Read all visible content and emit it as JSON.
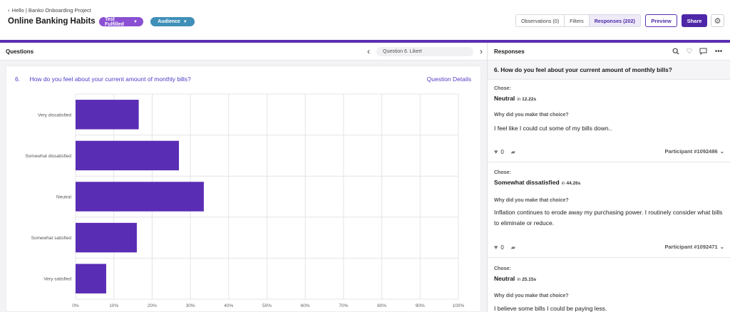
{
  "header": {
    "breadcrumb": "Hello | Banko Onboarding Project",
    "title": "Online Banking Habits",
    "test_status": "Test Fulfilled",
    "audience_label": "Audience",
    "tabs": [
      {
        "label": "Observations (0)"
      },
      {
        "label": "Filters"
      },
      {
        "label": "Responses (202)",
        "active": true
      }
    ],
    "preview_label": "Preview",
    "share_label": "Share",
    "accent_color": "#5b2fb0"
  },
  "questions": {
    "label": "Questions",
    "selector": "Question 6. Likert",
    "question_number": "6.",
    "question_text": "How do you feel about your current amount of monthly bills?",
    "details_link": "Question Details"
  },
  "chart_data": {
    "type": "bar",
    "orientation": "horizontal",
    "categories": [
      "Very dissatisfied",
      "Somewhat dissatisfied",
      "Neutral",
      "Somewhat satisfied",
      "Very satisfied"
    ],
    "values": [
      16.5,
      27,
      33.5,
      16,
      8
    ],
    "xlim": [
      0,
      100
    ],
    "xticks": [
      "0%",
      "10%",
      "20%",
      "30%",
      "40%",
      "50%",
      "60%",
      "70%",
      "80%",
      "90%",
      "100%"
    ],
    "bar_color": "#5a2db5",
    "grid": true
  },
  "responses": {
    "label": "Responses",
    "question_title": "6. How do you feel about your current amount of monthly bills?",
    "chose_label": "Chose:",
    "why_label": "Why did you make that choice?",
    "time_prefix": "in",
    "items": [
      {
        "answer": "Neutral",
        "time": "12.22s",
        "text": "I feel like I could cut some of my bills down..",
        "likes": "0",
        "participant": "Participant #1092486"
      },
      {
        "answer": "Somewhat dissatisfied",
        "time": "44.26s",
        "text": "Inflation continues to erode away my purchasing power. I routinely consider what bills to eliminate or reduce.",
        "likes": "0",
        "participant": "Participant #1092471"
      },
      {
        "answer": "Neutral",
        "time": "25.15s",
        "text": "I believe some bills I could be paying less.",
        "likes": "",
        "participant": ""
      }
    ]
  }
}
